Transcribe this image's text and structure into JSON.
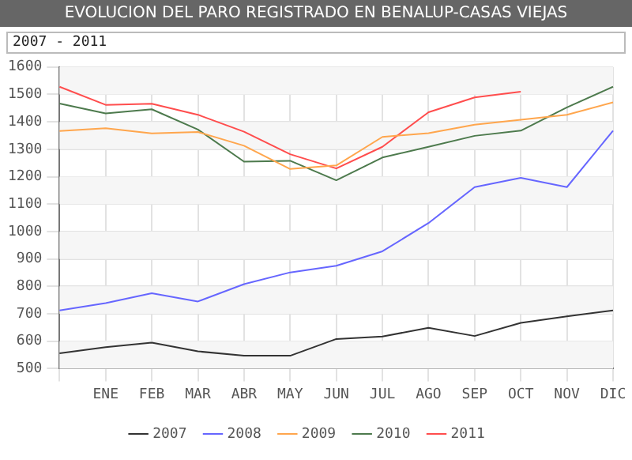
{
  "chart_data": {
    "type": "line",
    "title": "EVOLUCION DEL PARO REGISTRADO EN BENALUP-CASAS VIEJAS",
    "subtitle": "2007 - 2011",
    "categories": [
      null,
      "ENE",
      "FEB",
      "MAR",
      "ABR",
      "MAY",
      "JUN",
      "JUL",
      "AGO",
      "SEP",
      "OCT",
      "NOV",
      "DIC"
    ],
    "series": [
      {
        "name": "2007",
        "color": "#333333",
        "values": [
          556,
          578,
          595,
          563,
          547,
          547,
          608,
          617,
          649,
          619,
          667,
          691,
          712
        ]
      },
      {
        "name": "2008",
        "color": "#6666ff",
        "values": [
          712,
          739,
          775,
          745,
          808,
          851,
          875,
          928,
          1031,
          1162,
          1196,
          1162,
          1368
        ]
      },
      {
        "name": "2009",
        "color": "#ffa64d",
        "values": [
          1367,
          1377,
          1358,
          1363,
          1313,
          1228,
          1241,
          1345,
          1359,
          1390,
          1408,
          1426,
          1471
        ]
      },
      {
        "name": "2010",
        "color": "#4d7a4d",
        "values": [
          1467,
          1431,
          1446,
          1372,
          1255,
          1258,
          1187,
          1270,
          1309,
          1349,
          1368,
          1453,
          1528
        ]
      },
      {
        "name": "2011",
        "color": "#ff4d4d",
        "values": [
          1528,
          1462,
          1466,
          1426,
          1364,
          1282,
          1230,
          1309,
          1435,
          1489,
          1510,
          null,
          null
        ]
      }
    ],
    "ylim": [
      500,
      1600
    ],
    "yticks": [
      500,
      600,
      700,
      800,
      900,
      1000,
      1100,
      1200,
      1300,
      1400,
      1500,
      1600
    ],
    "grid": true,
    "legend": "bottom",
    "marker": "none",
    "line_style": "solid"
  }
}
